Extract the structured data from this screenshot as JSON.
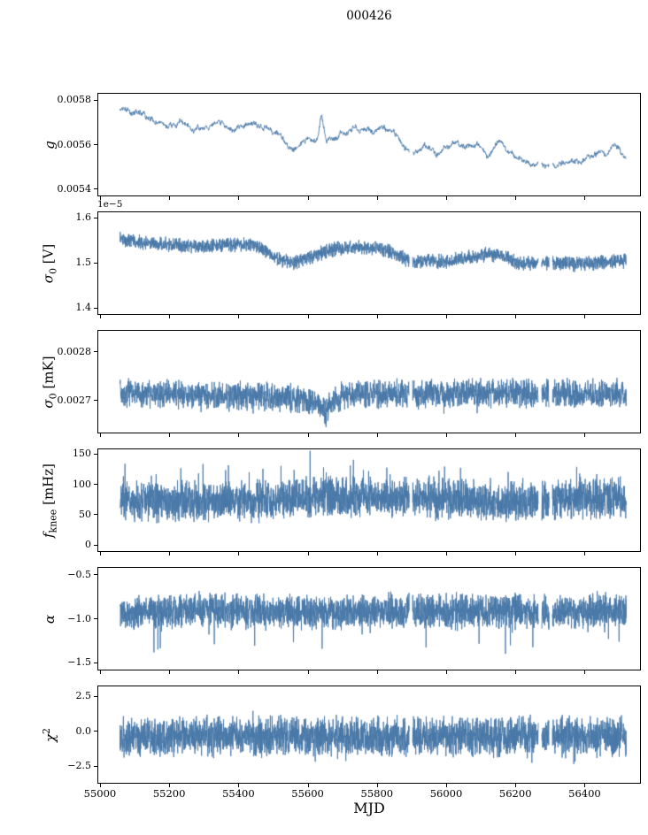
{
  "title": "000426",
  "xlabel": "MJD",
  "chart_data": {
    "type": "line",
    "line_color": "#4878a8",
    "xlim": [
      54995,
      56560
    ],
    "data_x": [
      55058,
      56520
    ],
    "xticks": [
      55000,
      55200,
      55400,
      55600,
      55800,
      56000,
      56200,
      56400
    ],
    "xtick_labels": [
      "55000",
      "55200",
      "55400",
      "55600",
      "55800",
      "56000",
      "56200",
      "56400"
    ],
    "gaps": [
      [
        55893,
        55903
      ],
      [
        56266,
        56276
      ],
      [
        56297,
        56307
      ]
    ],
    "panels": [
      {
        "id": "g",
        "ylabel": {
          "pre": "g",
          "sub": "",
          "sup": "",
          "post": ""
        },
        "offset_label": "",
        "ylim": [
          0.005372,
          0.005828
        ],
        "yticks": [
          0.0054,
          0.0056,
          0.0058
        ],
        "ytick_labels": [
          "0.0054",
          "0.0056",
          "0.0058"
        ],
        "style": "walk",
        "noise": 2e-05,
        "points": 1500,
        "spike_rate": 0,
        "spike_amp": 0,
        "spike_dir": 0,
        "trend": [
          [
            55060,
            0.00575
          ],
          [
            55090,
            0.00574
          ],
          [
            55120,
            0.00572
          ],
          [
            55150,
            0.0057
          ],
          [
            55180,
            0.00569
          ],
          [
            55210,
            0.00568
          ],
          [
            55240,
            0.00569
          ],
          [
            55270,
            0.00567
          ],
          [
            55300,
            0.00567
          ],
          [
            55330,
            0.00568
          ],
          [
            55360,
            0.00568
          ],
          [
            55390,
            0.00566
          ],
          [
            55420,
            0.00569
          ],
          [
            55450,
            0.0057
          ],
          [
            55480,
            0.00567
          ],
          [
            55510,
            0.00563
          ],
          [
            55540,
            0.0056
          ],
          [
            55570,
            0.00559
          ],
          [
            55600,
            0.00562
          ],
          [
            55628,
            0.00561
          ],
          [
            55640,
            0.00572
          ],
          [
            55655,
            0.00563
          ],
          [
            55680,
            0.00564
          ],
          [
            55710,
            0.00566
          ],
          [
            55730,
            0.00569
          ],
          [
            55760,
            0.00567
          ],
          [
            55790,
            0.00566
          ],
          [
            55820,
            0.00568
          ],
          [
            55850,
            0.00564
          ],
          [
            55880,
            0.00558
          ],
          [
            55910,
            0.00556
          ],
          [
            55940,
            0.00557
          ],
          [
            55970,
            0.00554
          ],
          [
            56000,
            0.00557
          ],
          [
            56030,
            0.0056
          ],
          [
            56060,
            0.00557
          ],
          [
            56090,
            0.00559
          ],
          [
            56120,
            0.00558
          ],
          [
            56150,
            0.00561
          ],
          [
            56180,
            0.00556
          ],
          [
            56210,
            0.00552
          ],
          [
            56240,
            0.00551
          ],
          [
            56270,
            0.00549
          ],
          [
            56300,
            0.00548
          ],
          [
            56330,
            0.00551
          ],
          [
            56360,
            0.00553
          ],
          [
            56390,
            0.00552
          ],
          [
            56420,
            0.00554
          ],
          [
            56450,
            0.00556
          ],
          [
            56480,
            0.00559
          ],
          [
            56500,
            0.00557
          ],
          [
            56520,
            0.00551
          ]
        ]
      },
      {
        "id": "sigma0-v",
        "ylabel": {
          "pre": "σ",
          "sub": "0",
          "sup": "",
          "post": " [V]"
        },
        "offset_label": "1e−5",
        "ylim": [
          1.387,
          1.612
        ],
        "yticks": [
          1.4,
          1.5,
          1.6
        ],
        "ytick_labels": [
          "1.4",
          "1.5",
          "1.6"
        ],
        "style": "band",
        "noise": 0.013,
        "points": 2800,
        "spike_rate": 0,
        "spike_amp": 0,
        "spike_dir": 0,
        "trend": [
          [
            55060,
            1.553
          ],
          [
            55120,
            1.545
          ],
          [
            55200,
            1.54
          ],
          [
            55280,
            1.536
          ],
          [
            55360,
            1.54
          ],
          [
            55440,
            1.541
          ],
          [
            55480,
            1.527
          ],
          [
            55520,
            1.506
          ],
          [
            55560,
            1.5
          ],
          [
            55610,
            1.513
          ],
          [
            55660,
            1.528
          ],
          [
            55720,
            1.535
          ],
          [
            55800,
            1.532
          ],
          [
            55860,
            1.52
          ],
          [
            55900,
            1.5
          ],
          [
            55940,
            1.505
          ],
          [
            56000,
            1.503
          ],
          [
            56060,
            1.512
          ],
          [
            56120,
            1.52
          ],
          [
            56170,
            1.515
          ],
          [
            56210,
            1.498
          ],
          [
            56260,
            1.5
          ],
          [
            56320,
            1.5
          ],
          [
            56380,
            1.497
          ],
          [
            56440,
            1.5
          ],
          [
            56520,
            1.505
          ]
        ]
      },
      {
        "id": "sigma0-mk",
        "ylabel": {
          "pre": "σ",
          "sub": "0",
          "sup": "",
          "post": " [mK]"
        },
        "offset_label": "",
        "ylim": [
          0.002634,
          0.002843
        ],
        "yticks": [
          0.0027,
          0.0028
        ],
        "ytick_labels": [
          "0.0027",
          "0.0028"
        ],
        "style": "band",
        "noise": 2.4e-05,
        "points": 2800,
        "spike_rate": 0.004,
        "spike_amp": 4e-05,
        "spike_dir": -1,
        "trend": [
          [
            55060,
            0.002715
          ],
          [
            55200,
            0.002713
          ],
          [
            55350,
            0.00271
          ],
          [
            55500,
            0.002708
          ],
          [
            55600,
            0.002702
          ],
          [
            55638,
            0.002688
          ],
          [
            55650,
            0.002672
          ],
          [
            55665,
            0.0027
          ],
          [
            55720,
            0.002712
          ],
          [
            55850,
            0.002715
          ],
          [
            56000,
            0.002712
          ],
          [
            56150,
            0.002716
          ],
          [
            56300,
            0.002714
          ],
          [
            56520,
            0.002714
          ]
        ]
      },
      {
        "id": "fknee",
        "ylabel": {
          "pre": "f",
          "sub": "knee",
          "sup": "",
          "post": " [mHz]"
        },
        "offset_label": "",
        "ylim": [
          -10,
          158
        ],
        "yticks": [
          0,
          50,
          100,
          150
        ],
        "ytick_labels": [
          "0",
          "50",
          "100",
          "150"
        ],
        "style": "band",
        "noise": 27,
        "points": 3200,
        "spike_rate": 0.025,
        "spike_amp": 45,
        "spike_dir": 1,
        "trend": [
          [
            55060,
            70
          ],
          [
            55250,
            74
          ],
          [
            55500,
            73
          ],
          [
            55650,
            80
          ],
          [
            55900,
            78
          ],
          [
            56000,
            76
          ],
          [
            56150,
            70
          ],
          [
            56250,
            72
          ],
          [
            56400,
            78
          ],
          [
            56520,
            74
          ]
        ]
      },
      {
        "id": "alpha",
        "ylabel": {
          "pre": "α",
          "sub": "",
          "sup": "",
          "post": ""
        },
        "offset_label": "",
        "ylim": [
          -1.58,
          -0.42
        ],
        "yticks": [
          -1.5,
          -1.0,
          -0.5
        ],
        "ytick_labels": [
          "−1.5",
          "−1.0",
          "−0.5"
        ],
        "style": "band",
        "noise": 0.16,
        "points": 3200,
        "spike_rate": 0.012,
        "spike_amp": 0.38,
        "spike_dir": -1,
        "trend": [
          [
            55060,
            -0.93
          ],
          [
            55300,
            -0.9
          ],
          [
            55600,
            -0.93
          ],
          [
            55900,
            -0.9
          ],
          [
            56200,
            -0.92
          ],
          [
            56520,
            -0.9
          ]
        ]
      },
      {
        "id": "chi2",
        "ylabel": {
          "pre": "χ",
          "sub": "",
          "sup": "2",
          "post": ""
        },
        "offset_label": "",
        "ylim": [
          -3.7,
          3.2
        ],
        "yticks": [
          -2.5,
          0.0,
          2.5
        ],
        "ytick_labels": [
          "−2.5",
          "0.0",
          "2.5"
        ],
        "style": "band",
        "noise": 1.15,
        "points": 3200,
        "spike_rate": 0.02,
        "spike_amp": 1.1,
        "spike_dir": 0,
        "trend": [
          [
            55060,
            -0.45
          ],
          [
            55400,
            -0.35
          ],
          [
            55800,
            -0.4
          ],
          [
            56200,
            -0.35
          ],
          [
            56520,
            -0.4
          ]
        ]
      }
    ]
  }
}
